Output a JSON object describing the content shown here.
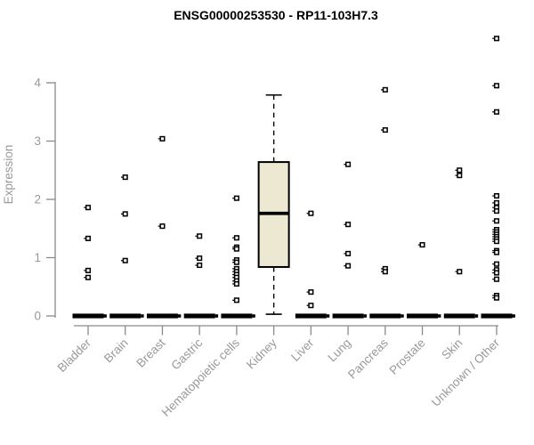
{
  "title": "ENSG00000253530 - RP11-103H7.3",
  "chart_data": {
    "type": "boxplot",
    "title": "ENSG00000253530 - RP11-103H7.3",
    "xlabel": "",
    "ylabel": "Expression",
    "ylim": [
      0,
      4.9
    ],
    "yticks": [
      "0",
      "1",
      "2",
      "3",
      "4"
    ],
    "grid": false,
    "legend": "none",
    "categories": [
      "Bladder",
      "Brain",
      "Breast",
      "Gastric",
      "Hematopoietic cells",
      "Kidney",
      "Liver",
      "Lung",
      "Pancreas",
      "Prostate",
      "Skin",
      "Unknown / Other"
    ],
    "series": [
      {
        "name": "Bladder",
        "median": 0,
        "zero_bar": true,
        "points": [
          1.86,
          1.33,
          0.78,
          0.66
        ]
      },
      {
        "name": "Brain",
        "median": 0,
        "zero_bar": true,
        "points": [
          2.38,
          1.75,
          0.95
        ]
      },
      {
        "name": "Breast",
        "median": 0,
        "zero_bar": true,
        "points": [
          3.04,
          1.54
        ]
      },
      {
        "name": "Gastric",
        "median": 0,
        "zero_bar": true,
        "points": [
          1.37,
          0.99,
          0.87
        ]
      },
      {
        "name": "Hematopoietic cells",
        "median": 0,
        "zero_bar": true,
        "points": [
          2.02,
          1.34,
          1.18,
          1.15,
          0.96,
          0.92,
          0.81,
          0.76,
          0.71,
          0.66,
          0.6,
          0.55,
          0.27
        ]
      },
      {
        "name": "Kidney",
        "zero_bar": false,
        "box": {
          "lower_whisker": 0.03,
          "q1": 0.84,
          "median": 1.76,
          "q3": 2.64,
          "upper_whisker": 3.79
        },
        "points": []
      },
      {
        "name": "Liver",
        "median": 0,
        "zero_bar": true,
        "points": [
          1.76,
          0.41,
          0.18
        ]
      },
      {
        "name": "Lung",
        "median": 0,
        "zero_bar": true,
        "points": [
          2.6,
          1.57,
          1.07,
          0.86
        ]
      },
      {
        "name": "Pancreas",
        "median": 0,
        "zero_bar": true,
        "points": [
          3.88,
          3.19,
          0.81,
          0.76
        ]
      },
      {
        "name": "Prostate",
        "median": 0,
        "zero_bar": true,
        "points": [
          1.22
        ]
      },
      {
        "name": "Skin",
        "median": 0,
        "zero_bar": true,
        "points": [
          2.5,
          2.41,
          0.76
        ]
      },
      {
        "name": "Unknown / Other",
        "median": 0,
        "zero_bar": true,
        "points": [
          4.76,
          3.95,
          3.5,
          2.06,
          1.94,
          1.86,
          1.8,
          1.63,
          1.48,
          1.44,
          1.4,
          1.36,
          1.32,
          1.28,
          1.12,
          1.09,
          0.89,
          0.79,
          0.74,
          0.63,
          0.35,
          0.31
        ]
      }
    ],
    "colors": {
      "box_fill": "#ede8d1",
      "data": "#000000",
      "axis_line": "#8a8a8a",
      "axis_text": "#999999",
      "background": "#ffffff"
    }
  }
}
